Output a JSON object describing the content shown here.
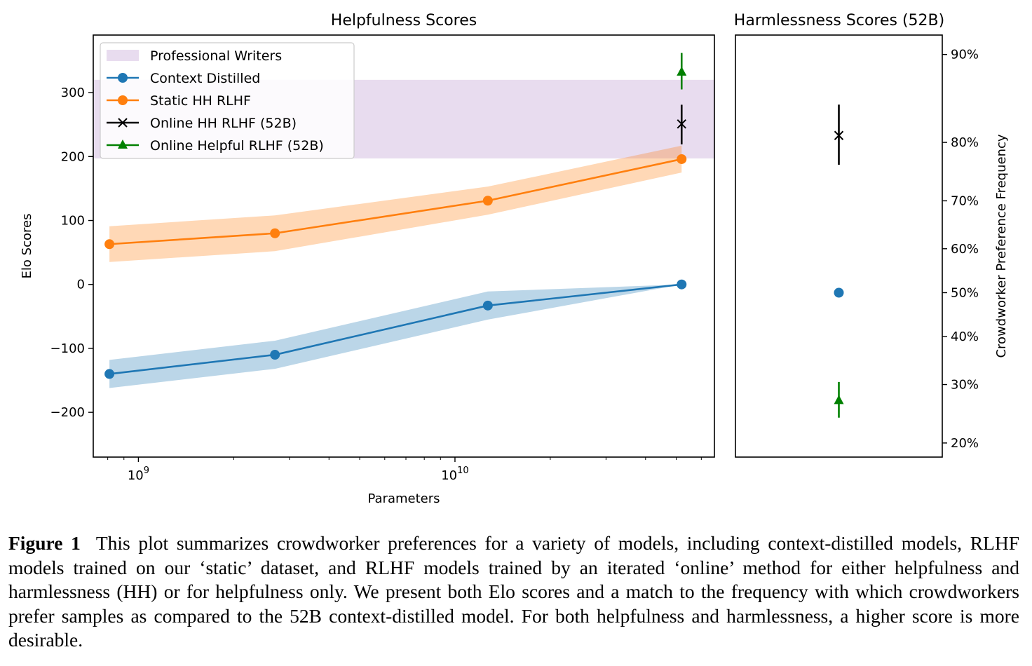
{
  "chart_data": [
    {
      "type": "line",
      "title": "Helpfulness Scores",
      "xlabel": "Parameters",
      "ylabel": "Elo Scores",
      "xscale": "log",
      "xlim": [
        720000000.0,
        66000000000.0
      ],
      "ylim": [
        -270,
        390
      ],
      "yticks": [
        -200,
        -100,
        0,
        100,
        200,
        300
      ],
      "ytick_labels": [
        "−200",
        "−100",
        "0",
        "100",
        "200",
        "300"
      ],
      "xtick_major": [
        {
          "value": 1000000000.0,
          "base": "10",
          "exp": "9"
        },
        {
          "value": 10000000000.0,
          "base": "10",
          "exp": "10"
        }
      ],
      "grid": false,
      "legend_position": "top-left",
      "band": {
        "name": "Professional Writers",
        "y_low": 197,
        "y_high": 320,
        "color": "#e8dcef"
      },
      "series": [
        {
          "name": "Context Distilled",
          "color": "#1f77b4",
          "marker": "circle",
          "x": [
            810000000.0,
            2700000000.0,
            12700000000.0,
            52000000000.0
          ],
          "y": [
            -140,
            -110,
            -33,
            0
          ],
          "y_low": [
            -162,
            -132,
            -55,
            0
          ],
          "y_high": [
            -118,
            -88,
            -11,
            0
          ]
        },
        {
          "name": "Static HH RLHF",
          "color": "#ff7f0e",
          "marker": "circle",
          "x": [
            810000000.0,
            2700000000.0,
            12700000000.0,
            52000000000.0
          ],
          "y": [
            63,
            80,
            131,
            196
          ],
          "y_low": [
            35,
            52,
            109,
            175
          ],
          "y_high": [
            91,
            108,
            153,
            217
          ]
        },
        {
          "name": "Online HH RLHF (52B)",
          "color": "#000000",
          "marker": "x",
          "x": [
            52000000000.0
          ],
          "y": [
            251
          ],
          "err_low": [
            219
          ],
          "err_high": [
            281
          ]
        },
        {
          "name": "Online Helpful RLHF (52B)",
          "color": "#008000",
          "marker": "triangle",
          "x": [
            52000000000.0
          ],
          "y": [
            332
          ],
          "err_low": [
            305
          ],
          "err_high": [
            362
          ]
        }
      ]
    },
    {
      "type": "scatter",
      "title": "Harmlessness Scores (52B)",
      "ylabel": "Crowdworker Preference Frequency",
      "yaxis_side": "right",
      "yscale": "logit",
      "ylim": [
        0.18,
        0.915
      ],
      "yticks": [
        0.2,
        0.3,
        0.4,
        0.5,
        0.6,
        0.7,
        0.8,
        0.9
      ],
      "ytick_labels": [
        "20%",
        "30%",
        "40%",
        "50%",
        "60%",
        "70%",
        "80%",
        "90%"
      ],
      "grid": false,
      "points": [
        {
          "series": "Online HH RLHF (52B)",
          "color": "#000000",
          "marker": "x",
          "y": 0.81,
          "err_low": 0.765,
          "err_high": 0.85
        },
        {
          "series": "Context Distilled",
          "color": "#1f77b4",
          "marker": "circle",
          "y": 0.5
        },
        {
          "series": "Online Helpful RLHF (52B)",
          "color": "#008000",
          "marker": "triangle",
          "y": 0.27,
          "err_low": 0.24,
          "err_high": 0.305
        }
      ]
    }
  ],
  "caption": {
    "label": "Figure 1",
    "text": "This plot summarizes crowdworker preferences for a variety of models, including context-distilled models, RLHF models trained on our ‘static’ dataset, and RLHF models trained by an iterated ‘online’ method for either helpfulness and harmlessness (HH) or for helpfulness only. We present both Elo scores and a match to the frequency with which crowdworkers prefer samples as compared to the 52B context-distilled model. For both helpfulness and harmlessness, a higher score is more desirable."
  }
}
